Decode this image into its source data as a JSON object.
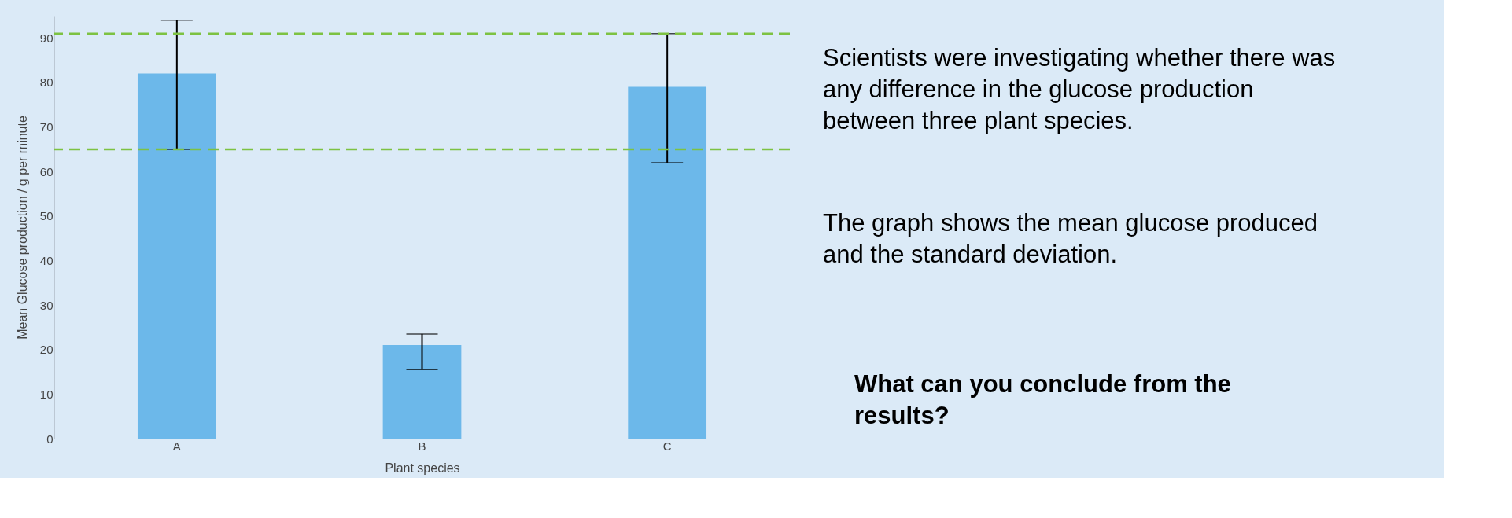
{
  "chart_data": {
    "type": "bar",
    "xlabel": "Plant species",
    "ylabel": "Mean Glucose production / g per minute",
    "categories": [
      "A",
      "B",
      "C"
    ],
    "values": [
      82,
      21,
      79
    ],
    "color": "#6cb8ea",
    "errors": [
      [
        65,
        94
      ],
      [
        15.5,
        23.5
      ],
      [
        62,
        91
      ]
    ],
    "ylim": [
      0,
      95
    ],
    "yticks": [
      0,
      10,
      20,
      30,
      40,
      50,
      60,
      70,
      80,
      90
    ],
    "grid": false,
    "ref_lines": [
      {
        "axis": "y",
        "value": 91,
        "color": "#7dc242",
        "line_style": "dashed"
      },
      {
        "axis": "y",
        "value": 65,
        "color": "#7dc242",
        "line_style": "dashed"
      }
    ],
    "annotations": [
      "Scientists were investigating whether there was any difference in the glucose production between three plant species.",
      "The graph shows the mean glucose produced and the standard deviation.",
      "What can you conclude from the results?"
    ]
  }
}
